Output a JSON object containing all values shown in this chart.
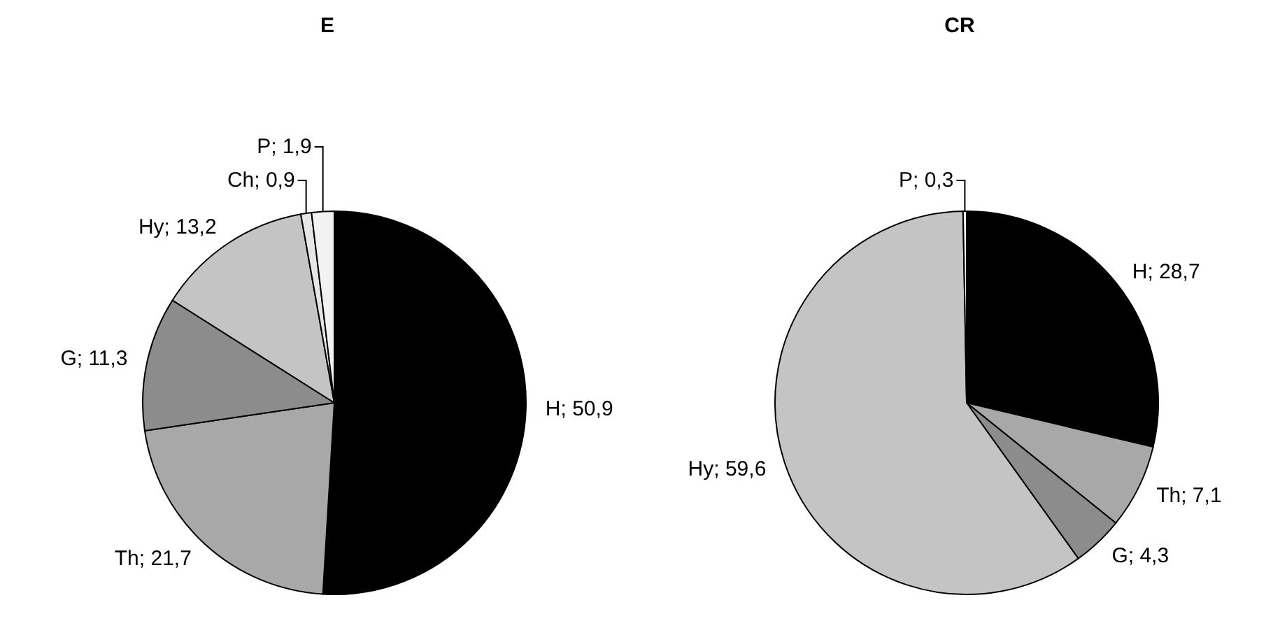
{
  "chart_data": [
    {
      "type": "pie",
      "title": "E",
      "categories": [
        "H",
        "Th",
        "G",
        "Hy",
        "Ch",
        "P"
      ],
      "values": [
        50.9,
        21.7,
        11.3,
        13.2,
        0.9,
        1.9
      ],
      "value_labels": [
        "50,9",
        "21,7",
        "11,3",
        "13,2",
        "0,9",
        "1,9"
      ],
      "colors": [
        "#000000",
        "#a8a8a8",
        "#8c8c8c",
        "#c4c4c4",
        "#e6e6e6",
        "#f2f2f2"
      ]
    },
    {
      "type": "pie",
      "title": "CR",
      "categories": [
        "H",
        "Th",
        "G",
        "Hy",
        "P"
      ],
      "values": [
        28.7,
        7.1,
        4.3,
        59.6,
        0.3
      ],
      "value_labels": [
        "28,7",
        "7,1",
        "4,3",
        "59,6",
        "0,3"
      ],
      "colors": [
        "#000000",
        "#a8a8a8",
        "#8c8c8c",
        "#c4c4c4",
        "#f2f2f2"
      ]
    }
  ]
}
